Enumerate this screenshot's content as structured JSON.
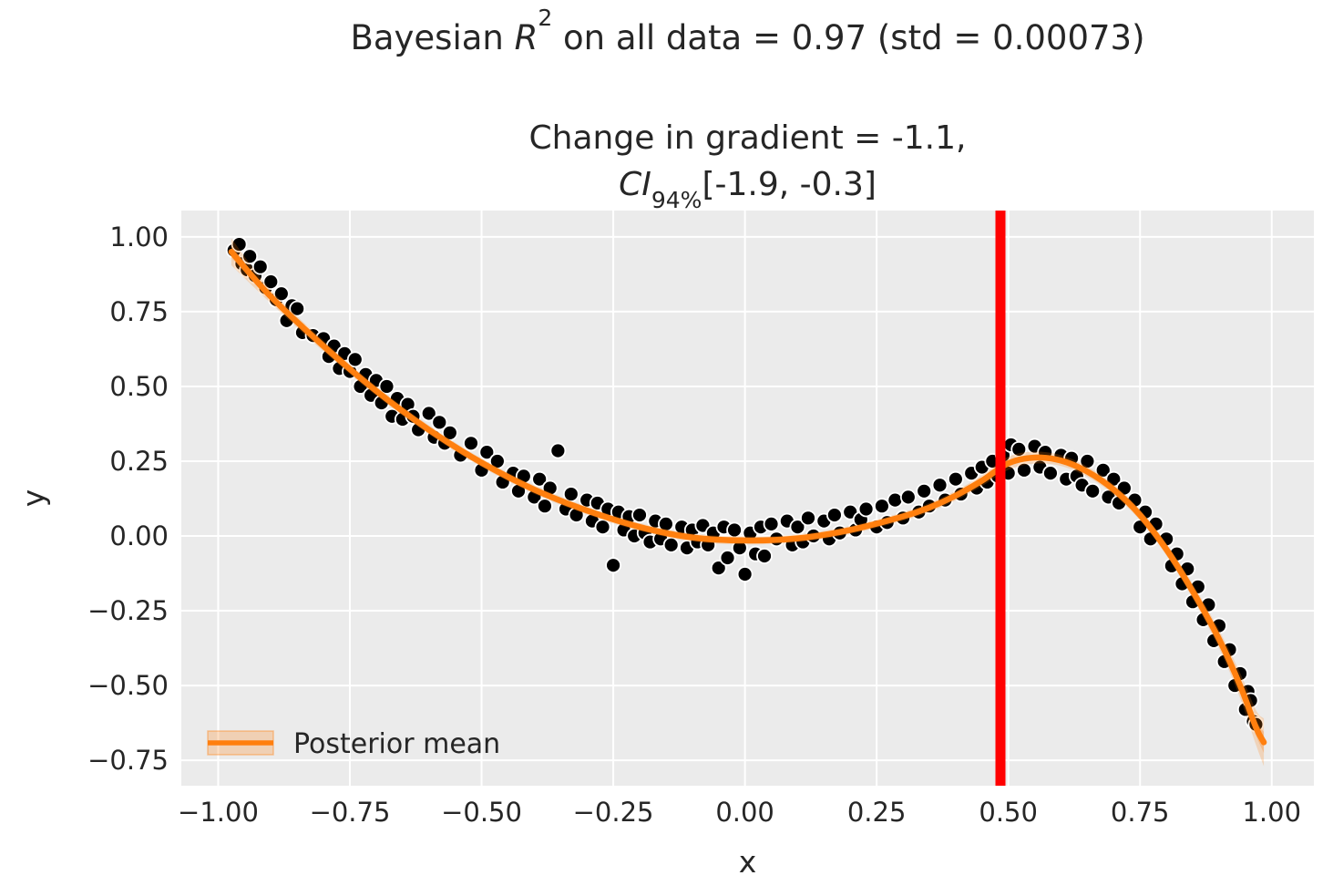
{
  "titles": {
    "suptitle_prefix": "Bayesian ",
    "suptitle_math": "R",
    "suptitle_sup": "2",
    "suptitle_rest": " on all data = 0.97 (std = 0.00073)",
    "axes_title_line1": "Change in gradient = -1.1,",
    "ci_label": "CI",
    "ci_sub": "94%",
    "ci_values": "[-1.9, -0.3]"
  },
  "legend": {
    "label": "Posterior mean",
    "position": "lower left"
  },
  "colors": {
    "axes_background": "#ebebeb",
    "grid": "#ffffff",
    "scatter_fill": "#000000",
    "scatter_edge": "#ffffff",
    "posterior_mean": "#ff7f0e",
    "credible_band": "#ff7f0e",
    "change_point_line": "#ff0000",
    "text": "#262626"
  },
  "chart_data": {
    "type": "scatter",
    "title": "Bayesian R^2 on all data = 0.97 (std = 0.00073)",
    "subtitle": "Change in gradient = -1.1, CI_94% [-1.9, -0.3]",
    "xlabel": "x",
    "ylabel": "y",
    "xlim": [
      -1.07,
      1.08
    ],
    "ylim": [
      -0.835,
      1.088
    ],
    "grid": true,
    "x_ticks": [
      -1.0,
      -0.75,
      -0.5,
      -0.25,
      0.0,
      0.25,
      0.5,
      0.75,
      1.0
    ],
    "x_tick_labels": [
      "−1.00",
      "−0.75",
      "−0.50",
      "−0.25",
      "0.00",
      "0.25",
      "0.50",
      "0.75",
      "1.00"
    ],
    "y_ticks": [
      -0.75,
      -0.5,
      -0.25,
      0.0,
      0.25,
      0.5,
      0.75,
      1.0
    ],
    "y_tick_labels": [
      "−0.75",
      "−0.50",
      "−0.25",
      "0.00",
      "0.25",
      "0.50",
      "0.75",
      "1.00"
    ],
    "change_point_x": 0.485,
    "posterior_mean": [
      [
        -0.975,
        0.95
      ],
      [
        -0.9,
        0.8
      ],
      [
        -0.8,
        0.635
      ],
      [
        -0.7,
        0.485
      ],
      [
        -0.6,
        0.355
      ],
      [
        -0.5,
        0.245
      ],
      [
        -0.4,
        0.155
      ],
      [
        -0.3,
        0.085
      ],
      [
        -0.2,
        0.03
      ],
      [
        -0.1,
        -0.005
      ],
      [
        0.0,
        -0.015
      ],
      [
        0.1,
        -0.008
      ],
      [
        0.2,
        0.02
      ],
      [
        0.3,
        0.065
      ],
      [
        0.35,
        0.095
      ],
      [
        0.4,
        0.135
      ],
      [
        0.45,
        0.185
      ],
      [
        0.5,
        0.243
      ],
      [
        0.55,
        0.262
      ],
      [
        0.6,
        0.252
      ],
      [
        0.65,
        0.215
      ],
      [
        0.7,
        0.155
      ],
      [
        0.75,
        0.07
      ],
      [
        0.8,
        -0.045
      ],
      [
        0.85,
        -0.185
      ],
      [
        0.9,
        -0.345
      ],
      [
        0.94,
        -0.5
      ],
      [
        0.97,
        -0.64
      ],
      [
        0.985,
        -0.69
      ]
    ],
    "credible_band": [
      [
        -0.975,
        0.905,
        0.995
      ],
      [
        -0.9,
        0.778,
        0.822
      ],
      [
        -0.8,
        0.617,
        0.653
      ],
      [
        -0.7,
        0.469,
        0.501
      ],
      [
        -0.6,
        0.34,
        0.37
      ],
      [
        -0.5,
        0.231,
        0.259
      ],
      [
        -0.4,
        0.141,
        0.169
      ],
      [
        -0.3,
        0.072,
        0.098
      ],
      [
        -0.2,
        0.017,
        0.043
      ],
      [
        -0.1,
        -0.018,
        0.008
      ],
      [
        0.0,
        -0.028,
        -0.002
      ],
      [
        0.1,
        -0.021,
        0.005
      ],
      [
        0.2,
        0.007,
        0.033
      ],
      [
        0.3,
        0.051,
        0.079
      ],
      [
        0.35,
        0.08,
        0.11
      ],
      [
        0.4,
        0.119,
        0.151
      ],
      [
        0.45,
        0.167,
        0.203
      ],
      [
        0.5,
        0.221,
        0.265
      ],
      [
        0.55,
        0.242,
        0.282
      ],
      [
        0.6,
        0.234,
        0.27
      ],
      [
        0.65,
        0.198,
        0.232
      ],
      [
        0.7,
        0.138,
        0.172
      ],
      [
        0.75,
        0.052,
        0.088
      ],
      [
        0.8,
        -0.065,
        -0.025
      ],
      [
        0.85,
        -0.209,
        -0.161
      ],
      [
        0.9,
        -0.375,
        -0.315
      ],
      [
        0.94,
        -0.542,
        -0.458
      ],
      [
        0.97,
        -0.698,
        -0.582
      ],
      [
        0.985,
        -0.77,
        -0.61
      ]
    ],
    "scatter": [
      [
        -0.97,
        0.955
      ],
      [
        -0.96,
        0.975
      ],
      [
        -0.955,
        0.91
      ],
      [
        -0.945,
        0.89
      ],
      [
        -0.94,
        0.935
      ],
      [
        -0.93,
        0.87
      ],
      [
        -0.92,
        0.9
      ],
      [
        -0.91,
        0.83
      ],
      [
        -0.9,
        0.85
      ],
      [
        -0.89,
        0.79
      ],
      [
        -0.88,
        0.81
      ],
      [
        -0.87,
        0.72
      ],
      [
        -0.86,
        0.77
      ],
      [
        -0.85,
        0.76
      ],
      [
        -0.84,
        0.68
      ],
      [
        -0.82,
        0.67
      ],
      [
        -0.8,
        0.66
      ],
      [
        -0.79,
        0.6
      ],
      [
        -0.78,
        0.635
      ],
      [
        -0.77,
        0.56
      ],
      [
        -0.76,
        0.61
      ],
      [
        -0.75,
        0.55
      ],
      [
        -0.74,
        0.59
      ],
      [
        -0.73,
        0.5
      ],
      [
        -0.72,
        0.54
      ],
      [
        -0.71,
        0.47
      ],
      [
        -0.7,
        0.52
      ],
      [
        -0.69,
        0.445
      ],
      [
        -0.68,
        0.5
      ],
      [
        -0.67,
        0.4
      ],
      [
        -0.66,
        0.46
      ],
      [
        -0.65,
        0.39
      ],
      [
        -0.64,
        0.44
      ],
      [
        -0.63,
        0.4
      ],
      [
        -0.62,
        0.355
      ],
      [
        -0.6,
        0.41
      ],
      [
        -0.59,
        0.33
      ],
      [
        -0.58,
        0.38
      ],
      [
        -0.57,
        0.31
      ],
      [
        -0.56,
        0.345
      ],
      [
        -0.54,
        0.27
      ],
      [
        -0.52,
        0.31
      ],
      [
        -0.5,
        0.22
      ],
      [
        -0.49,
        0.28
      ],
      [
        -0.47,
        0.25
      ],
      [
        -0.46,
        0.18
      ],
      [
        -0.44,
        0.21
      ],
      [
        -0.43,
        0.15
      ],
      [
        -0.42,
        0.2
      ],
      [
        -0.4,
        0.13
      ],
      [
        -0.39,
        0.19
      ],
      [
        -0.38,
        0.1
      ],
      [
        -0.37,
        0.16
      ],
      [
        -0.355,
        0.285
      ],
      [
        -0.34,
        0.09
      ],
      [
        -0.33,
        0.14
      ],
      [
        -0.32,
        0.07
      ],
      [
        -0.3,
        0.12
      ],
      [
        -0.29,
        0.05
      ],
      [
        -0.28,
        0.11
      ],
      [
        -0.27,
        0.03
      ],
      [
        -0.26,
        0.09
      ],
      [
        -0.25,
        -0.098
      ],
      [
        -0.24,
        0.08
      ],
      [
        -0.23,
        0.02
      ],
      [
        -0.22,
        0.065
      ],
      [
        -0.21,
        0.0
      ],
      [
        -0.2,
        0.07
      ],
      [
        -0.19,
        0.01
      ],
      [
        -0.18,
        -0.02
      ],
      [
        -0.17,
        0.05
      ],
      [
        -0.16,
        -0.01
      ],
      [
        -0.15,
        0.04
      ],
      [
        -0.14,
        -0.03
      ],
      [
        -0.12,
        0.03
      ],
      [
        -0.11,
        -0.04
      ],
      [
        -0.1,
        0.02
      ],
      [
        -0.09,
        -0.02
      ],
      [
        -0.08,
        0.035
      ],
      [
        -0.07,
        -0.03
      ],
      [
        -0.06,
        0.01
      ],
      [
        -0.05,
        -0.107
      ],
      [
        -0.04,
        0.03
      ],
      [
        -0.033,
        -0.073
      ],
      [
        -0.02,
        0.02
      ],
      [
        -0.01,
        -0.04
      ],
      [
        0.0,
        -0.128
      ],
      [
        0.01,
        0.01
      ],
      [
        0.02,
        -0.06
      ],
      [
        0.03,
        0.03
      ],
      [
        0.037,
        -0.067
      ],
      [
        0.05,
        0.04
      ],
      [
        0.06,
        -0.01
      ],
      [
        0.08,
        0.05
      ],
      [
        0.09,
        -0.03
      ],
      [
        0.1,
        0.03
      ],
      [
        0.11,
        -0.02
      ],
      [
        0.12,
        0.06
      ],
      [
        0.13,
        0.0
      ],
      [
        0.15,
        0.05
      ],
      [
        0.16,
        -0.01
      ],
      [
        0.17,
        0.07
      ],
      [
        0.18,
        0.01
      ],
      [
        0.2,
        0.08
      ],
      [
        0.21,
        0.02
      ],
      [
        0.22,
        0.055
      ],
      [
        0.23,
        0.09
      ],
      [
        0.25,
        0.03
      ],
      [
        0.26,
        0.1
      ],
      [
        0.27,
        0.045
      ],
      [
        0.285,
        0.12
      ],
      [
        0.3,
        0.06
      ],
      [
        0.31,
        0.13
      ],
      [
        0.33,
        0.08
      ],
      [
        0.34,
        0.15
      ],
      [
        0.35,
        0.1
      ],
      [
        0.37,
        0.17
      ],
      [
        0.38,
        0.12
      ],
      [
        0.4,
        0.19
      ],
      [
        0.41,
        0.14
      ],
      [
        0.43,
        0.21
      ],
      [
        0.44,
        0.16
      ],
      [
        0.45,
        0.23
      ],
      [
        0.46,
        0.18
      ],
      [
        0.47,
        0.25
      ],
      [
        0.48,
        0.2
      ],
      [
        0.49,
        0.27
      ],
      [
        0.5,
        0.21
      ],
      [
        0.505,
        0.305
      ],
      [
        0.52,
        0.29
      ],
      [
        0.53,
        0.22
      ],
      [
        0.55,
        0.3
      ],
      [
        0.56,
        0.23
      ],
      [
        0.57,
        0.28
      ],
      [
        0.58,
        0.21
      ],
      [
        0.6,
        0.27
      ],
      [
        0.61,
        0.19
      ],
      [
        0.62,
        0.26
      ],
      [
        0.63,
        0.2
      ],
      [
        0.64,
        0.17
      ],
      [
        0.65,
        0.25
      ],
      [
        0.66,
        0.15
      ],
      [
        0.68,
        0.22
      ],
      [
        0.69,
        0.13
      ],
      [
        0.7,
        0.19
      ],
      [
        0.71,
        0.11
      ],
      [
        0.72,
        0.16
      ],
      [
        0.74,
        0.12
      ],
      [
        0.75,
        0.03
      ],
      [
        0.76,
        0.08
      ],
      [
        0.77,
        -0.01
      ],
      [
        0.78,
        0.04
      ],
      [
        0.8,
        -0.01
      ],
      [
        0.81,
        -0.1
      ],
      [
        0.82,
        -0.06
      ],
      [
        0.83,
        -0.16
      ],
      [
        0.84,
        -0.11
      ],
      [
        0.85,
        -0.22
      ],
      [
        0.86,
        -0.17
      ],
      [
        0.87,
        -0.28
      ],
      [
        0.88,
        -0.23
      ],
      [
        0.89,
        -0.35
      ],
      [
        0.9,
        -0.3
      ],
      [
        0.91,
        -0.42
      ],
      [
        0.92,
        -0.38
      ],
      [
        0.93,
        -0.5
      ],
      [
        0.94,
        -0.46
      ],
      [
        0.95,
        -0.58
      ],
      [
        0.955,
        -0.52
      ],
      [
        0.96,
        -0.55
      ],
      [
        0.965,
        -0.62
      ],
      [
        0.97,
        -0.63
      ]
    ],
    "legend_entries": [
      "Posterior mean"
    ]
  }
}
